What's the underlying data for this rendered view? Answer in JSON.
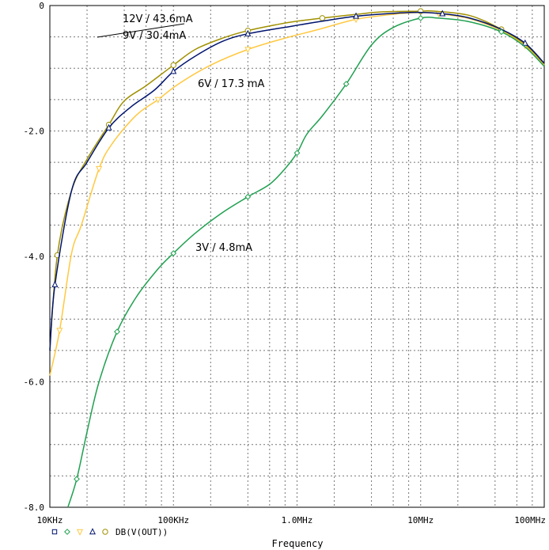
{
  "chart_data": {
    "type": "line",
    "xlabel": "Frequency",
    "x_scale": "log",
    "xlim": [
      10000,
      100000000
    ],
    "ylim": [
      -8.0,
      0
    ],
    "grid": true,
    "x_ticks": [
      {
        "value": 10000,
        "label": "10KHz"
      },
      {
        "value": 100000,
        "label": "100KHz"
      },
      {
        "value": 1000000,
        "label": "1.0MHz"
      },
      {
        "value": 10000000,
        "label": "10MHz"
      },
      {
        "value": 100000000,
        "label": "100MHz"
      }
    ],
    "y_ticks": [
      {
        "value": 0,
        "label": "0"
      },
      {
        "value": -2.0,
        "label": "-2.0"
      },
      {
        "value": -4.0,
        "label": "-4.0"
      },
      {
        "value": -6.0,
        "label": "-6.0"
      },
      {
        "value": -8.0,
        "label": "-8.0"
      }
    ],
    "legend": {
      "trace_label": "DB(V(OUT))",
      "marker_symbols": [
        "square",
        "diamond",
        "down-triangle",
        "up-triangle",
        "circle"
      ]
    },
    "series": [
      {
        "name": "12V / 43.6mA",
        "color": "#a09000",
        "marker": "circle",
        "points": [
          [
            10000,
            -5.48
          ],
          [
            11500,
            -3.98
          ],
          [
            15000,
            -2.95
          ],
          [
            20000,
            -2.45
          ],
          [
            30000,
            -1.9
          ],
          [
            40000,
            -1.52
          ],
          [
            60000,
            -1.28
          ],
          [
            100000,
            -0.95
          ],
          [
            150000,
            -0.7
          ],
          [
            250000,
            -0.52
          ],
          [
            400000,
            -0.4
          ],
          [
            700000,
            -0.3
          ],
          [
            1000000,
            -0.25
          ],
          [
            1600000,
            -0.2
          ],
          [
            3000000,
            -0.14
          ],
          [
            5000000,
            -0.1
          ],
          [
            10000000,
            -0.09
          ],
          [
            13000000,
            -0.09
          ],
          [
            25000000,
            -0.16
          ],
          [
            45000000,
            -0.38
          ],
          [
            70000000,
            -0.62
          ],
          [
            100000000,
            -0.93
          ]
        ]
      },
      {
        "name": "9V / 30.4mA",
        "color": "#00146e",
        "marker": "up-triangle",
        "points": [
          [
            10000,
            -5.5
          ],
          [
            11000,
            -4.45
          ],
          [
            15000,
            -2.95
          ],
          [
            20000,
            -2.5
          ],
          [
            30000,
            -1.95
          ],
          [
            45000,
            -1.62
          ],
          [
            70000,
            -1.35
          ],
          [
            100000,
            -1.05
          ],
          [
            155000,
            -0.79
          ],
          [
            250000,
            -0.57
          ],
          [
            400000,
            -0.45
          ],
          [
            900000,
            -0.33
          ],
          [
            1600000,
            -0.25
          ],
          [
            3000000,
            -0.17
          ],
          [
            6500000,
            -0.12
          ],
          [
            10000000,
            -0.11
          ],
          [
            15000000,
            -0.13
          ],
          [
            25000000,
            -0.2
          ],
          [
            45000000,
            -0.38
          ],
          [
            70000000,
            -0.6
          ],
          [
            100000000,
            -0.92
          ]
        ]
      },
      {
        "name": "6V / 17.3 mA",
        "color": "#ffc840",
        "marker": "down-triangle",
        "points": [
          [
            10000,
            -5.9
          ],
          [
            12000,
            -5.18
          ],
          [
            15000,
            -3.95
          ],
          [
            18000,
            -3.5
          ],
          [
            25000,
            -2.6
          ],
          [
            32000,
            -2.2
          ],
          [
            50000,
            -1.75
          ],
          [
            75000,
            -1.5
          ],
          [
            110000,
            -1.25
          ],
          [
            200000,
            -0.95
          ],
          [
            400000,
            -0.7
          ],
          [
            800000,
            -0.52
          ],
          [
            1500000,
            -0.38
          ],
          [
            3000000,
            -0.22
          ],
          [
            6000000,
            -0.14
          ],
          [
            10000000,
            -0.11
          ],
          [
            14000000,
            -0.13
          ],
          [
            25000000,
            -0.21
          ],
          [
            45000000,
            -0.4
          ],
          [
            70000000,
            -0.64
          ],
          [
            100000000,
            -0.95
          ]
        ]
      },
      {
        "name": "3V / 4.8mA",
        "color": "#20a050",
        "marker": "diamond",
        "points": [
          [
            14000,
            -8.0
          ],
          [
            16500,
            -7.55
          ],
          [
            20000,
            -6.8
          ],
          [
            25000,
            -6.0
          ],
          [
            35000,
            -5.2
          ],
          [
            50000,
            -4.65
          ],
          [
            75000,
            -4.2
          ],
          [
            100000,
            -3.95
          ],
          [
            150000,
            -3.63
          ],
          [
            250000,
            -3.3
          ],
          [
            400000,
            -3.05
          ],
          [
            600000,
            -2.85
          ],
          [
            800000,
            -2.6
          ],
          [
            1000000,
            -2.35
          ],
          [
            1200000,
            -2.05
          ],
          [
            1600000,
            -1.76
          ],
          [
            2500000,
            -1.25
          ],
          [
            4000000,
            -0.63
          ],
          [
            6000000,
            -0.35
          ],
          [
            10000000,
            -0.2
          ],
          [
            14000000,
            -0.2
          ],
          [
            25000000,
            -0.26
          ],
          [
            45000000,
            -0.42
          ],
          [
            70000000,
            -0.66
          ],
          [
            100000000,
            -0.97
          ]
        ]
      }
    ],
    "annotations": [
      {
        "text": "12V / 43.6mA",
        "x": 17000000,
        "y": -0.15,
        "ax": 28000,
        "ay": -0.2
      },
      {
        "text": "9V / 30.4mA",
        "x": 28000,
        "y": -0.5
      },
      {
        "text": "6V / 17.3 mA",
        "x": 120000,
        "y": -1.25
      },
      {
        "text": "3V / 4.8mA",
        "x": 200000,
        "y": -3.95
      }
    ]
  }
}
